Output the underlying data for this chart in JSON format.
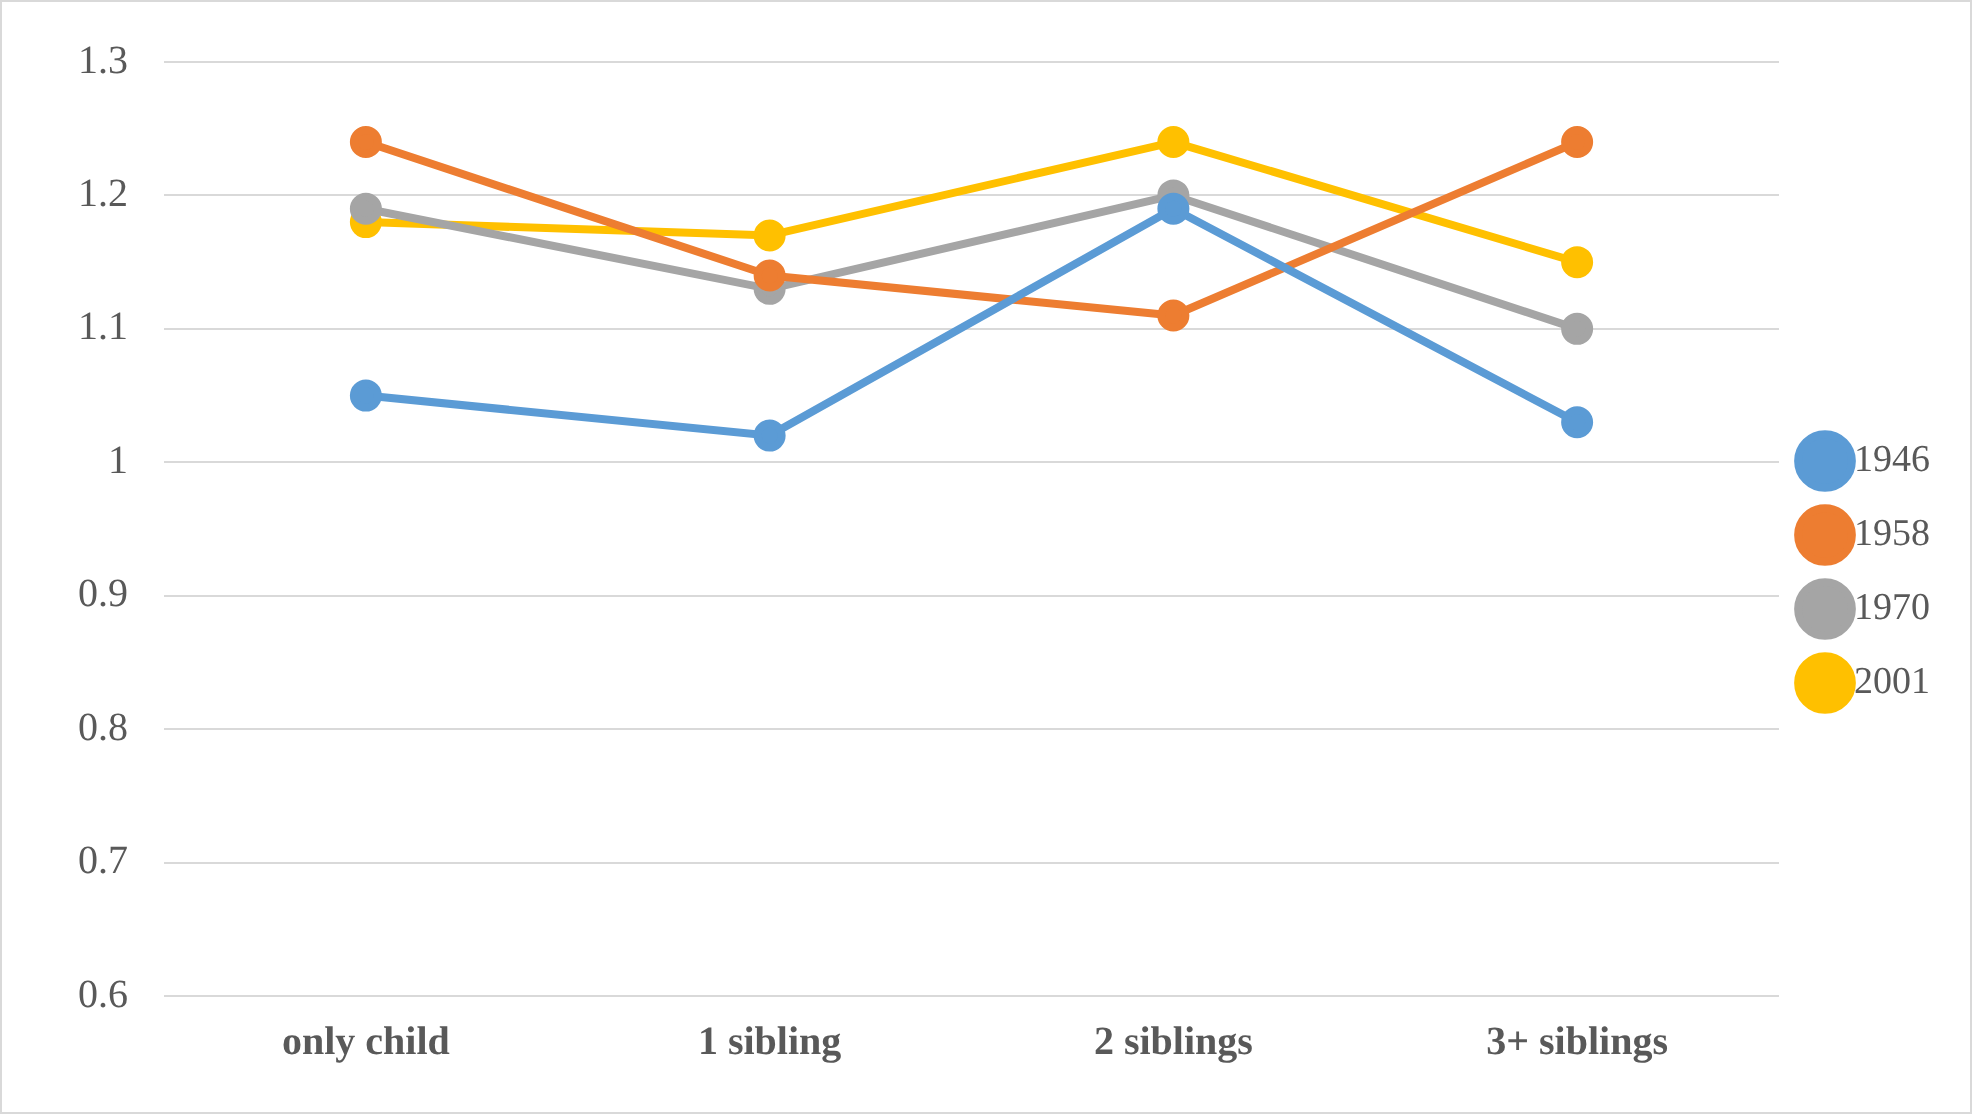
{
  "chart_data": {
    "type": "line",
    "categories": [
      "only child",
      "1 sibling",
      "2 siblings",
      "3+ siblings"
    ],
    "series": [
      {
        "name": "1946",
        "color": "#5b9bd5",
        "values": [
          1.05,
          1.02,
          1.19,
          1.03
        ]
      },
      {
        "name": "1958",
        "color": "#ed7d31",
        "values": [
          1.24,
          1.14,
          1.11,
          1.24
        ]
      },
      {
        "name": "1970",
        "color": "#a5a5a5",
        "values": [
          1.19,
          1.13,
          1.2,
          1.1
        ]
      },
      {
        "name": "2001",
        "color": "#ffc000",
        "values": [
          1.18,
          1.17,
          1.24,
          1.15
        ]
      }
    ],
    "ylim": [
      0.6,
      1.3
    ],
    "yticks": [
      0.6,
      0.7,
      0.8,
      0.9,
      1,
      1.1,
      1.2,
      1.3
    ],
    "grid": "y",
    "legend": "right",
    "marker": "circle",
    "line_style": "solid"
  }
}
